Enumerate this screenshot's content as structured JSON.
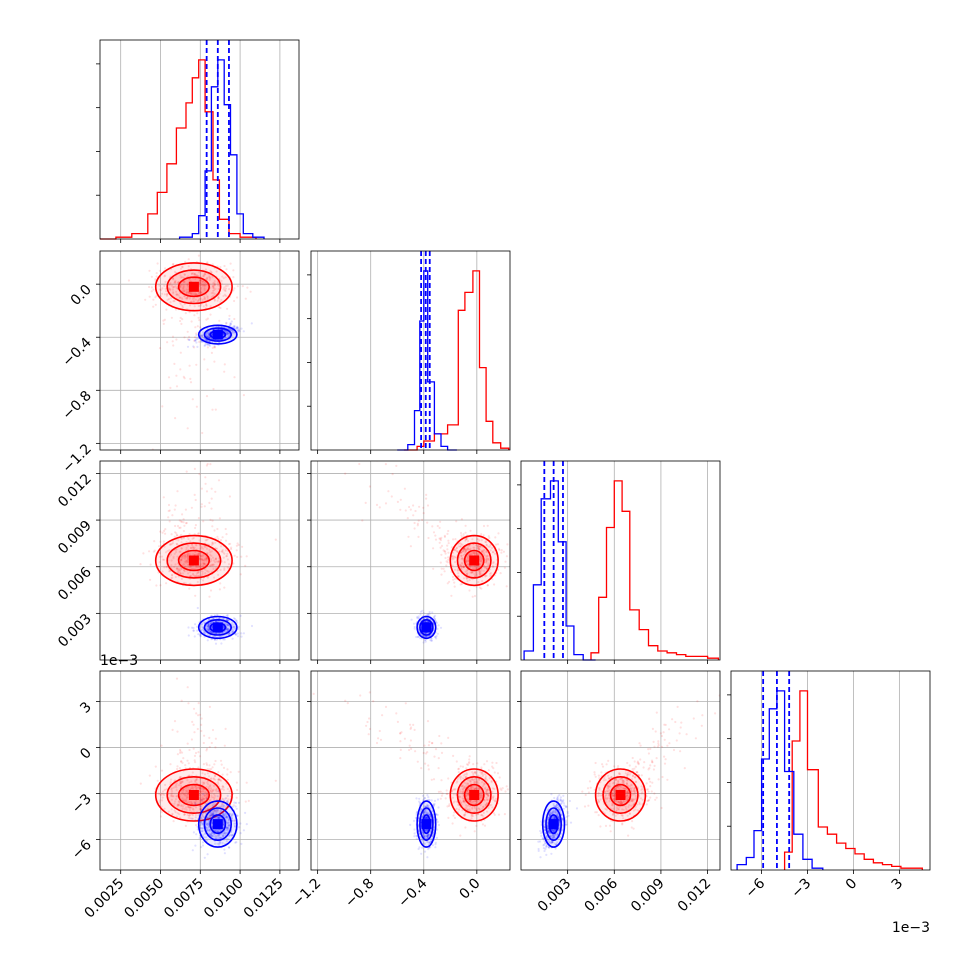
{
  "chart_data": {
    "type": "corner",
    "grid": true,
    "colors": {
      "series_a": "#ff0000",
      "series_b": "#0000ff"
    },
    "params": [
      {
        "lim": [
          0.0012,
          0.0137
        ],
        "ticks": [
          0.0025,
          0.005,
          0.0075,
          0.01,
          0.0125
        ],
        "tick_labels": [
          "0.0025",
          "0.0050",
          "0.0075",
          "0.0100",
          "0.0125"
        ],
        "offset": ""
      },
      {
        "lim": [
          -1.25,
          0.25
        ],
        "ticks": [
          -1.2,
          -0.8,
          -0.4,
          0.0
        ],
        "tick_labels": [
          "−1.2",
          "−0.8",
          "−0.4",
          "0.0"
        ],
        "offset": ""
      },
      {
        "lim": [
          0.0,
          0.0128
        ],
        "ticks": [
          0.003,
          0.006,
          0.009,
          0.012
        ],
        "tick_labels": [
          "0.003",
          "0.006",
          "0.009",
          "0.012"
        ],
        "offset": ""
      },
      {
        "lim": [
          -8.0,
          5.0
        ],
        "ticks": [
          -6,
          -3,
          0,
          3
        ],
        "tick_labels": [
          "−6",
          "−3",
          "0",
          "3"
        ],
        "offset": "1e−3"
      }
    ],
    "series": [
      {
        "color": "#ff0000",
        "means": [
          0.0071,
          -0.02,
          0.0064,
          -3.1
        ],
        "sigmas": [
          0.0012,
          0.09,
          0.0008,
          0.85
        ],
        "diagonal": [
          {
            "bins": [
              [
                0.0012,
                0.0022,
                0
              ],
              [
                0.0022,
                0.0032,
                1
              ],
              [
                0.0032,
                0.0042,
                3
              ],
              [
                0.0042,
                0.0048,
                14
              ],
              [
                0.0048,
                0.0054,
                26
              ],
              [
                0.0054,
                0.006,
                42
              ],
              [
                0.006,
                0.0066,
                62
              ],
              [
                0.0066,
                0.007,
                76
              ],
              [
                0.007,
                0.0074,
                90
              ],
              [
                0.0074,
                0.0078,
                100
              ],
              [
                0.0078,
                0.0083,
                71
              ],
              [
                0.0083,
                0.0087,
                33
              ],
              [
                0.0087,
                0.0093,
                11
              ],
              [
                0.0093,
                0.01,
                3
              ],
              [
                0.01,
                0.011,
                1
              ]
            ]
          },
          {
            "bins": [
              [
                -0.55,
                -0.45,
                0
              ],
              [
                -0.45,
                -0.4,
                2
              ],
              [
                -0.4,
                -0.32,
                5
              ],
              [
                -0.32,
                -0.22,
                9
              ],
              [
                -0.22,
                -0.14,
                14
              ],
              [
                -0.14,
                -0.09,
                78
              ],
              [
                -0.09,
                -0.03,
                88
              ],
              [
                -0.03,
                0.02,
                100
              ],
              [
                0.02,
                0.07,
                46
              ],
              [
                0.07,
                0.12,
                16
              ],
              [
                0.12,
                0.18,
                4
              ],
              [
                0.18,
                0.24,
                1
              ]
            ]
          },
          {
            "bins": [
              [
                0.0045,
                0.005,
                4
              ],
              [
                0.005,
                0.0055,
                35
              ],
              [
                0.0055,
                0.006,
                74
              ],
              [
                0.006,
                0.0065,
                100
              ],
              [
                0.0065,
                0.007,
                83
              ],
              [
                0.007,
                0.0076,
                28
              ],
              [
                0.0076,
                0.0082,
                17
              ],
              [
                0.0082,
                0.0088,
                8
              ],
              [
                0.0088,
                0.0094,
                5
              ],
              [
                0.0094,
                0.01,
                4
              ],
              [
                0.01,
                0.0106,
                3
              ],
              [
                0.0106,
                0.0112,
                2
              ],
              [
                0.0112,
                0.012,
                2
              ],
              [
                0.012,
                0.0127,
                1
              ]
            ]
          },
          {
            "bins": [
              [
                -4.5,
                -4.0,
                10
              ],
              [
                -4.0,
                -3.5,
                72
              ],
              [
                -3.5,
                -3.0,
                100
              ],
              [
                -3.0,
                -2.3,
                56
              ],
              [
                -2.3,
                -1.7,
                24
              ],
              [
                -1.7,
                -1.1,
                20
              ],
              [
                -1.1,
                -0.5,
                15
              ],
              [
                -0.5,
                0.1,
                12
              ],
              [
                0.1,
                0.7,
                9
              ],
              [
                0.7,
                1.3,
                6
              ],
              [
                1.3,
                1.9,
                4
              ],
              [
                1.9,
                2.5,
                3
              ],
              [
                2.5,
                3.1,
                2
              ],
              [
                3.1,
                3.8,
                1
              ],
              [
                3.8,
                4.5,
                1
              ]
            ]
          }
        ]
      },
      {
        "color": "#0000ff",
        "means": [
          0.0086,
          -0.38,
          0.0021,
          -5.0
        ],
        "sigmas": [
          0.0006,
          0.035,
          0.00035,
          0.75
        ],
        "quantiles": [
          [
            0.0079,
            0.0086,
            0.0093
          ],
          [
            -0.42,
            -0.385,
            -0.355
          ],
          [
            0.0015,
            0.0021,
            0.0027
          ],
          [
            -5.9,
            -5.0,
            -4.2
          ]
        ],
        "diagonal": [
          {
            "bins": [
              [
                0.0062,
                0.007,
                1
              ],
              [
                0.007,
                0.0074,
                3
              ],
              [
                0.0074,
                0.0078,
                13
              ],
              [
                0.0078,
                0.0082,
                38
              ],
              [
                0.0082,
                0.0086,
                85
              ],
              [
                0.0086,
                0.009,
                100
              ],
              [
                0.009,
                0.0094,
                75
              ],
              [
                0.0094,
                0.0098,
                47
              ],
              [
                0.0098,
                0.0102,
                14
              ],
              [
                0.0102,
                0.0108,
                3
              ],
              [
                0.0108,
                0.0115,
                1
              ]
            ]
          },
          {
            "bins": [
              [
                -0.6,
                -0.52,
                0
              ],
              [
                -0.52,
                -0.47,
                3
              ],
              [
                -0.47,
                -0.43,
                22
              ],
              [
                -0.43,
                -0.4,
                72
              ],
              [
                -0.4,
                -0.37,
                100
              ],
              [
                -0.37,
                -0.32,
                38
              ],
              [
                -0.32,
                -0.27,
                9
              ],
              [
                -0.27,
                -0.22,
                2
              ],
              [
                -0.22,
                -0.15,
                0
              ]
            ]
          },
          {
            "bins": [
              [
                0.0002,
                0.0008,
                5
              ],
              [
                0.0008,
                0.0013,
                42
              ],
              [
                0.0013,
                0.0019,
                90
              ],
              [
                0.0019,
                0.0024,
                100
              ],
              [
                0.0024,
                0.0029,
                66
              ],
              [
                0.0029,
                0.0034,
                19
              ],
              [
                0.0034,
                0.004,
                3
              ],
              [
                0.004,
                0.0048,
                0
              ]
            ]
          },
          {
            "bins": [
              [
                -7.6,
                -7.0,
                3
              ],
              [
                -7.0,
                -6.5,
                7
              ],
              [
                -6.5,
                -6.0,
                22
              ],
              [
                -6.0,
                -5.5,
                62
              ],
              [
                -5.5,
                -5.0,
                90
              ],
              [
                -5.0,
                -4.5,
                100
              ],
              [
                -4.5,
                -3.9,
                55
              ],
              [
                -3.9,
                -3.3,
                20
              ],
              [
                -3.3,
                -2.7,
                6
              ],
              [
                -2.7,
                -2.0,
                1
              ]
            ]
          }
        ]
      }
    ]
  }
}
